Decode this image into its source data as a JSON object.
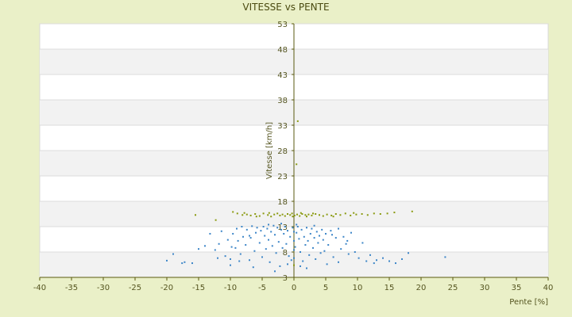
{
  "chart_data": {
    "type": "scatter",
    "title": "VITESSE vs PENTE",
    "xlabel": "Pente [%]",
    "ylabel": "Vitesse [km/h]",
    "xlim": [
      -40,
      40
    ],
    "ylim": [
      3,
      53
    ],
    "xticks": [
      -40,
      -35,
      -30,
      -25,
      -20,
      -15,
      -10,
      -5,
      0,
      5,
      10,
      15,
      20,
      25,
      30,
      35,
      40
    ],
    "yticks": [
      3,
      8,
      13,
      18,
      23,
      28,
      33,
      38,
      43,
      48,
      53
    ],
    "grid": "horizontal bands",
    "legend": "none",
    "colors": {
      "background": "#eaf0c8",
      "plot": "#ffffff",
      "band": "#f2f2f2",
      "axis": "#5a5a10",
      "series_blue": "#3d86c8",
      "series_olive": "#8a9a10"
    },
    "series": [
      {
        "color": "#8a9a10",
        "points": [
          [
            -15.5,
            15.3
          ],
          [
            -12.3,
            14.3
          ],
          [
            -9.6,
            15.9
          ],
          [
            -8.9,
            15.6
          ],
          [
            -8.1,
            15.3
          ],
          [
            -7.4,
            15.4
          ],
          [
            -6.8,
            15.2
          ],
          [
            -6.1,
            15.5
          ],
          [
            -5.4,
            15.1
          ],
          [
            -4.8,
            15.6
          ],
          [
            -4.1,
            15.3
          ],
          [
            -3.6,
            15.0
          ],
          [
            -3.1,
            15.4
          ],
          [
            -2.6,
            15.6
          ],
          [
            -2.2,
            15.2
          ],
          [
            -1.8,
            15.4
          ],
          [
            -1.4,
            15.1
          ],
          [
            -1.0,
            15.5
          ],
          [
            -0.6,
            15.3
          ],
          [
            -0.3,
            15.6
          ],
          [
            0.1,
            15.2
          ],
          [
            0.5,
            15.4
          ],
          [
            0.9,
            15.1
          ],
          [
            1.3,
            15.5
          ],
          [
            1.8,
            15.3
          ],
          [
            2.3,
            15.4
          ],
          [
            2.8,
            15.2
          ],
          [
            3.4,
            15.5
          ],
          [
            4.0,
            15.3
          ],
          [
            4.6,
            15.1
          ],
          [
            5.2,
            15.4
          ],
          [
            5.9,
            15.2
          ],
          [
            6.6,
            15.5
          ],
          [
            7.3,
            15.3
          ],
          [
            8.1,
            15.6
          ],
          [
            8.9,
            15.2
          ],
          [
            9.8,
            15.4
          ],
          [
            10.7,
            15.5
          ],
          [
            11.6,
            15.3
          ],
          [
            12.6,
            15.6
          ],
          [
            13.6,
            15.5
          ],
          [
            14.7,
            15.6
          ],
          [
            15.8,
            15.8
          ],
          [
            18.6,
            16.0
          ],
          [
            0.6,
            33.8
          ],
          [
            0.4,
            25.3
          ],
          [
            0.0,
            5.4
          ],
          [
            -0.2,
            15.0
          ],
          [
            1.1,
            15.7
          ],
          [
            2.0,
            15.0
          ],
          [
            3.0,
            15.6
          ],
          [
            -3.9,
            15.7
          ],
          [
            -5.9,
            15.0
          ],
          [
            -7.8,
            15.7
          ],
          [
            6.2,
            15.0
          ],
          [
            9.4,
            15.7
          ]
        ]
      },
      {
        "color": "#3d86c8",
        "points": [
          [
            -20.0,
            6.3
          ],
          [
            -19.0,
            7.6
          ],
          [
            -17.6,
            5.8
          ],
          [
            -17.2,
            6.0
          ],
          [
            -16.0,
            5.8
          ],
          [
            -15.0,
            8.6
          ],
          [
            -14.0,
            9.2
          ],
          [
            -13.2,
            11.6
          ],
          [
            -12.4,
            8.4
          ],
          [
            -11.8,
            9.6
          ],
          [
            -11.4,
            12.1
          ],
          [
            -10.8,
            7.2
          ],
          [
            -10.4,
            10.4
          ],
          [
            -10.0,
            6.6
          ],
          [
            -10.0,
            5.4
          ],
          [
            -9.6,
            11.6
          ],
          [
            -9.2,
            8.8
          ],
          [
            -9.0,
            12.6
          ],
          [
            -8.8,
            10.2
          ],
          [
            -8.4,
            7.6
          ],
          [
            -8.2,
            13.0
          ],
          [
            -8.0,
            11.0
          ],
          [
            -7.6,
            9.4
          ],
          [
            -7.4,
            12.4
          ],
          [
            -7.0,
            6.4
          ],
          [
            -6.8,
            10.8
          ],
          [
            -6.6,
            13.1
          ],
          [
            -6.2,
            8.2
          ],
          [
            -6.0,
            11.8
          ],
          [
            -5.8,
            12.8
          ],
          [
            -5.4,
            9.8
          ],
          [
            -5.2,
            12.2
          ],
          [
            -5.0,
            7.0
          ],
          [
            -4.8,
            13.0
          ],
          [
            -4.6,
            11.2
          ],
          [
            -4.4,
            8.6
          ],
          [
            -4.2,
            12.6
          ],
          [
            -4.0,
            10.4
          ],
          [
            -3.8,
            6.0
          ],
          [
            -3.6,
            12.0
          ],
          [
            -3.4,
            9.2
          ],
          [
            -3.2,
            13.2
          ],
          [
            -3.0,
            11.4
          ],
          [
            -2.8,
            7.8
          ],
          [
            -2.6,
            12.8
          ],
          [
            -2.4,
            10.0
          ],
          [
            -2.2,
            5.2
          ],
          [
            -2.0,
            12.4
          ],
          [
            -1.8,
            8.8
          ],
          [
            -1.6,
            11.6
          ],
          [
            -1.4,
            13.0
          ],
          [
            -1.2,
            9.6
          ],
          [
            -1.0,
            12.2
          ],
          [
            -0.8,
            7.2
          ],
          [
            -0.6,
            11.0
          ],
          [
            -0.4,
            6.4
          ],
          [
            -0.2,
            12.8
          ],
          [
            0.0,
            10.2
          ],
          [
            0.0,
            8.4
          ],
          [
            0.0,
            6.8
          ],
          [
            0.0,
            12.0
          ],
          [
            0.2,
            9.0
          ],
          [
            0.4,
            11.8
          ],
          [
            0.6,
            13.0
          ],
          [
            0.8,
            10.6
          ],
          [
            1.0,
            8.0
          ],
          [
            1.2,
            12.4
          ],
          [
            1.4,
            6.2
          ],
          [
            1.6,
            11.0
          ],
          [
            1.8,
            9.4
          ],
          [
            2.0,
            12.8
          ],
          [
            2.2,
            10.2
          ],
          [
            2.4,
            7.4
          ],
          [
            2.6,
            11.6
          ],
          [
            2.8,
            12.6
          ],
          [
            3.0,
            8.8
          ],
          [
            3.2,
            10.8
          ],
          [
            3.4,
            6.6
          ],
          [
            3.6,
            12.0
          ],
          [
            3.8,
            9.8
          ],
          [
            4.0,
            11.2
          ],
          [
            4.2,
            7.8
          ],
          [
            4.4,
            12.4
          ],
          [
            4.6,
            10.4
          ],
          [
            4.8,
            8.2
          ],
          [
            5.0,
            11.6
          ],
          [
            5.4,
            9.4
          ],
          [
            5.8,
            12.2
          ],
          [
            6.2,
            7.0
          ],
          [
            6.6,
            10.8
          ],
          [
            7.0,
            12.6
          ],
          [
            7.4,
            8.6
          ],
          [
            7.8,
            11.0
          ],
          [
            8.2,
            9.6
          ],
          [
            8.6,
            7.6
          ],
          [
            9.0,
            11.8
          ],
          [
            9.6,
            8.0
          ],
          [
            10.2,
            6.8
          ],
          [
            10.8,
            9.8
          ],
          [
            11.4,
            6.2
          ],
          [
            12.0,
            7.4
          ],
          [
            13.0,
            6.4
          ],
          [
            14.0,
            6.8
          ],
          [
            15.0,
            6.2
          ],
          [
            16.0,
            5.8
          ],
          [
            17.0,
            6.6
          ],
          [
            18.0,
            7.8
          ],
          [
            23.8,
            7.0
          ],
          [
            -3.0,
            4.2
          ],
          [
            2.0,
            4.8
          ],
          [
            5.2,
            5.6
          ],
          [
            -6.4,
            5.0
          ],
          [
            -1.0,
            5.6
          ],
          [
            1.0,
            5.2
          ],
          [
            7.0,
            6.0
          ],
          [
            -8.6,
            6.2
          ],
          [
            -12.0,
            6.8
          ],
          [
            12.6,
            5.8
          ],
          [
            -2.0,
            13.6
          ],
          [
            0.4,
            13.4
          ],
          [
            -4.0,
            13.4
          ],
          [
            3.2,
            13.2
          ],
          [
            -7.0,
            11.2
          ],
          [
            6.0,
            11.4
          ],
          [
            -9.8,
            9.0
          ],
          [
            8.4,
            10.2
          ]
        ]
      }
    ]
  }
}
